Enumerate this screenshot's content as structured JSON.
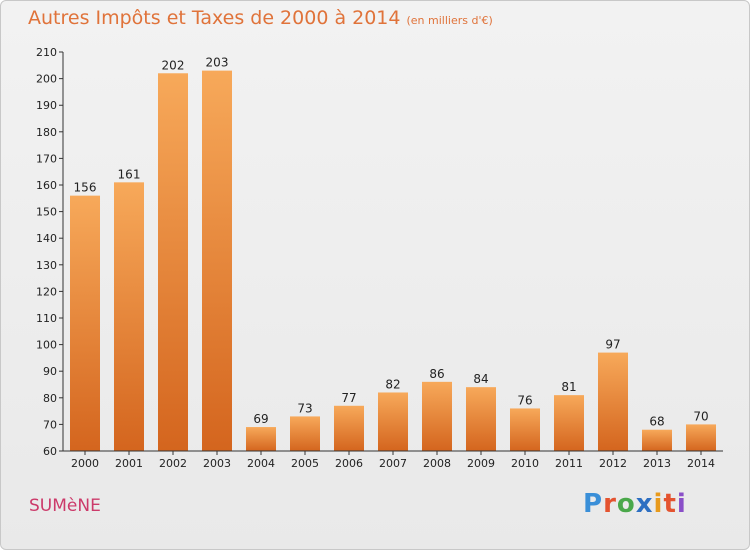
{
  "chart_data": {
    "type": "bar",
    "title": "Autres Impôts et Taxes de 2000 à 2014",
    "unit": "(en milliers d'€)",
    "categories": [
      "2000",
      "2001",
      "2002",
      "2003",
      "2004",
      "2005",
      "2006",
      "2007",
      "2008",
      "2009",
      "2010",
      "2011",
      "2012",
      "2013",
      "2014"
    ],
    "values": [
      156,
      161,
      202,
      203,
      69,
      73,
      77,
      82,
      86,
      84,
      76,
      81,
      97,
      68,
      70
    ],
    "ylim": [
      60,
      210
    ],
    "yticks": [
      60,
      70,
      80,
      90,
      100,
      110,
      120,
      130,
      140,
      150,
      160,
      170,
      180,
      190,
      200,
      210
    ],
    "grid": false,
    "bar_color": "#e8782a"
  },
  "footer": {
    "town": "SUMèNE",
    "logo": [
      "P",
      "r",
      "o",
      "x",
      "i",
      "t",
      "i"
    ]
  }
}
